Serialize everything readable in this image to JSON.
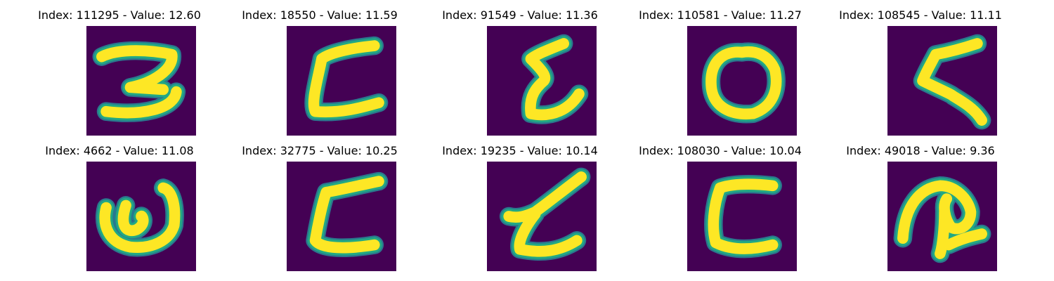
{
  "colors": {
    "background": "#440154",
    "stroke_outer": "#2a788e",
    "stroke_mid": "#22a884",
    "stroke_core": "#fde725"
  },
  "panels": [
    {
      "title": "Index: 111295 - Value: 12.60",
      "glyph": "two"
    },
    {
      "title": "Index: 18550 - Value: 11.59",
      "glyph": "c-open"
    },
    {
      "title": "Index: 91549 - Value: 11.36",
      "glyph": "script-l"
    },
    {
      "title": "Index: 110581 - Value: 11.27",
      "glyph": "o"
    },
    {
      "title": "Index: 108545 - Value: 11.11",
      "glyph": "epsilon"
    },
    {
      "title": "Index: 4662 - Value: 11.08",
      "glyph": "w"
    },
    {
      "title": "Index: 32775 - Value: 10.25",
      "glyph": "c-open-2"
    },
    {
      "title": "Index: 19235 - Value: 10.14",
      "glyph": "script-l-2"
    },
    {
      "title": "Index: 108030 - Value: 10.04",
      "glyph": "c"
    },
    {
      "title": "Index: 49018 - Value: 9.36",
      "glyph": "loop"
    }
  ]
}
